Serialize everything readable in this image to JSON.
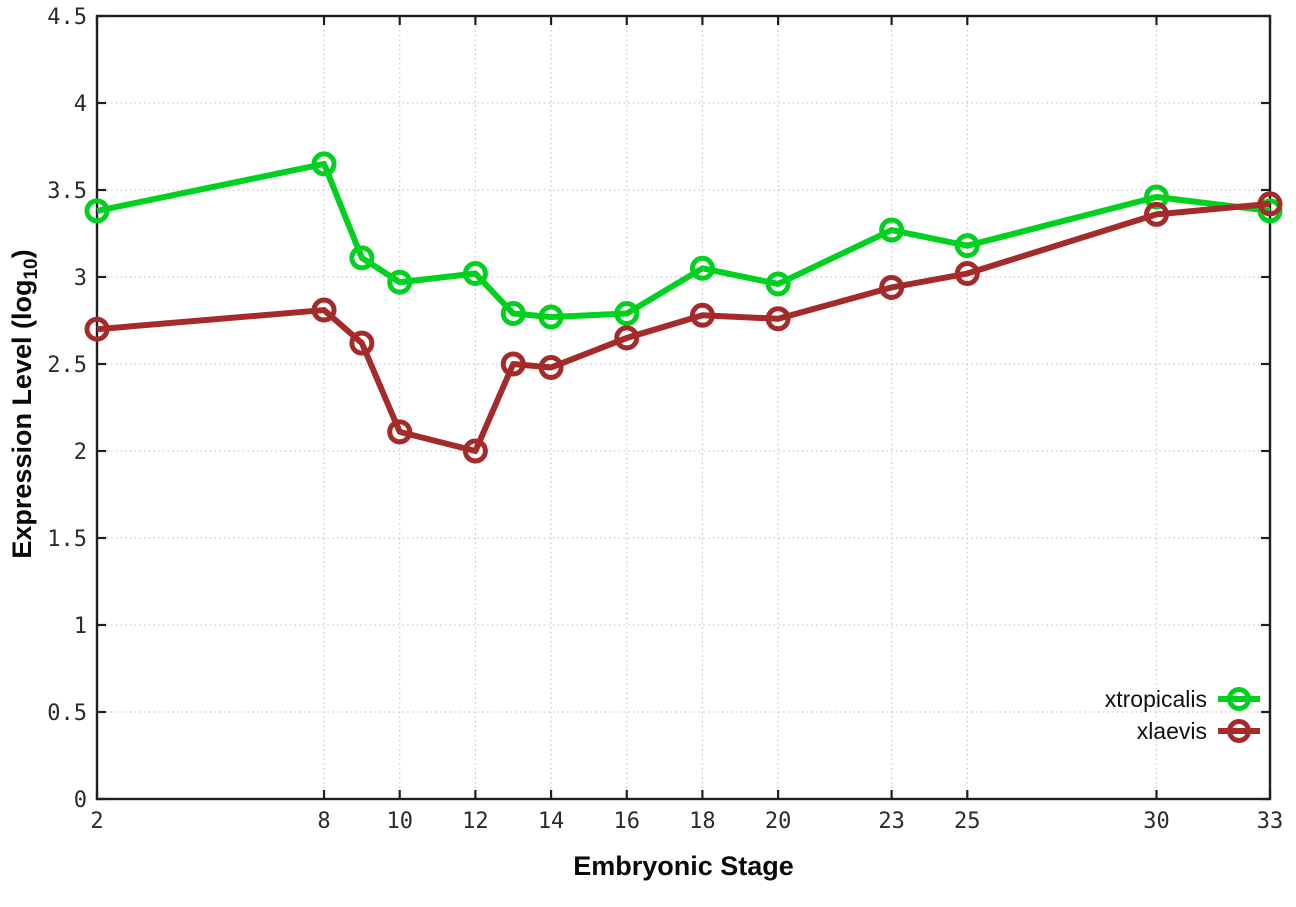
{
  "figure": {
    "background": "#ffffff",
    "xlabel": "Embryonic Stage",
    "ylabel_main": "Expression Level (log",
    "ylabel_sub": "10",
    "ylabel_close": ")"
  },
  "chart_data": {
    "type": "line",
    "title": "",
    "xlabel": "Embryonic Stage",
    "ylabel": "Expression Level (log10)",
    "x": [
      2,
      8,
      9,
      10,
      12,
      13,
      14,
      16,
      18,
      20,
      23,
      25,
      30,
      33
    ],
    "xticks": [
      2,
      8,
      10,
      12,
      14,
      16,
      18,
      20,
      23,
      25,
      30,
      33
    ],
    "yticks": [
      0,
      0.5,
      1,
      1.5,
      2,
      2.5,
      3,
      3.5,
      4,
      4.5
    ],
    "xlim": [
      2,
      33
    ],
    "ylim": [
      0,
      4.5
    ],
    "grid": true,
    "grid_color": "#c6c6c6",
    "border_color": "#1f1f1f",
    "legend_position": "bottom-right",
    "marker": "open-circle",
    "series": [
      {
        "name": "xtropicalis",
        "color": "#00d01e",
        "values": [
          3.38,
          3.65,
          3.11,
          2.97,
          3.02,
          2.79,
          2.77,
          2.79,
          3.05,
          2.96,
          3.27,
          3.18,
          3.46,
          3.38
        ]
      },
      {
        "name": "xlaevis",
        "color": "#a52a2a",
        "values": [
          2.7,
          2.81,
          2.62,
          2.11,
          2.0,
          2.5,
          2.48,
          2.65,
          2.78,
          2.76,
          2.94,
          3.02,
          3.36,
          3.42
        ]
      }
    ]
  }
}
